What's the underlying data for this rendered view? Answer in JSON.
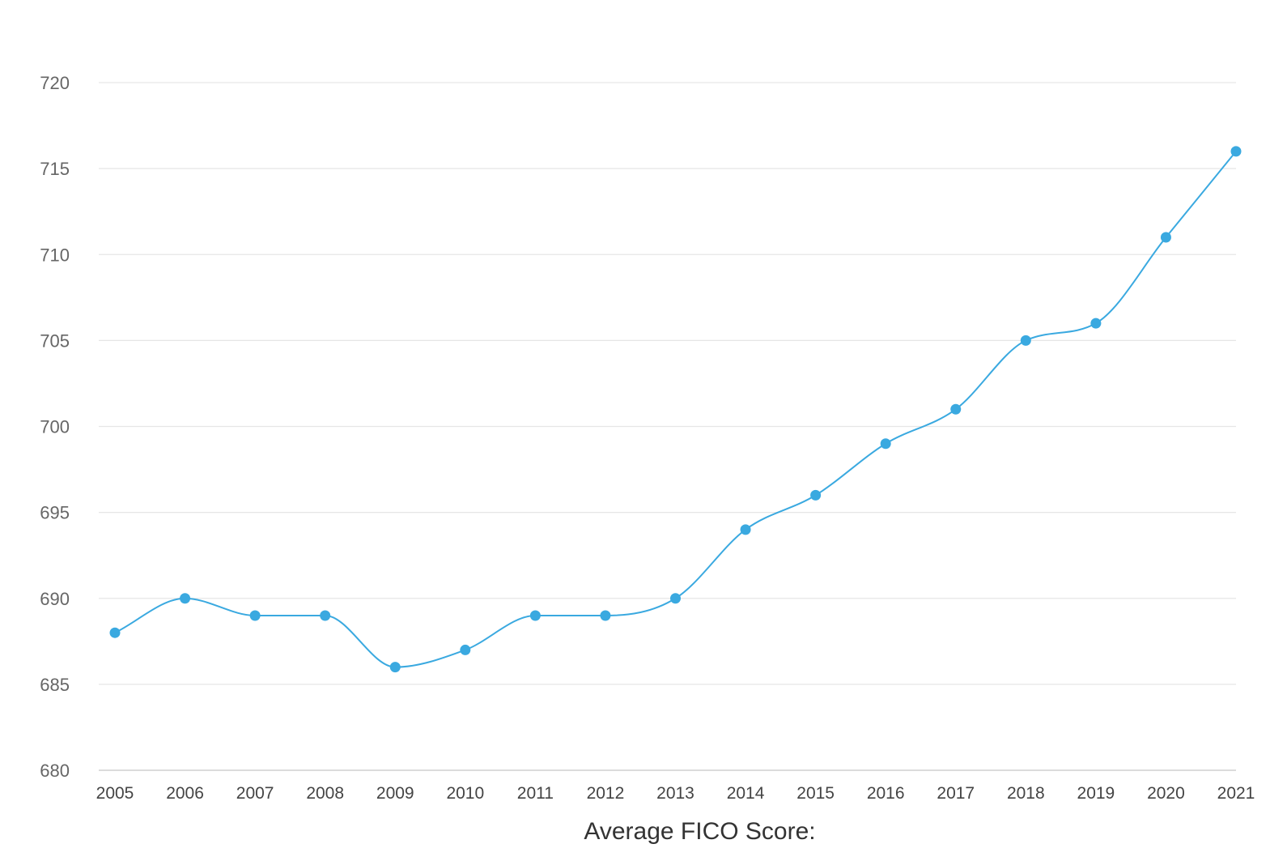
{
  "chart_data": {
    "type": "line",
    "title": "",
    "xlabel": "Average FICO Score:",
    "ylabel": "",
    "x": [
      "2005",
      "2006",
      "2007",
      "2008",
      "2009",
      "2010",
      "2011",
      "2012",
      "2013",
      "2014",
      "2015",
      "2016",
      "2017",
      "2018",
      "2019",
      "2020",
      "2021"
    ],
    "series": [
      {
        "values": [
          688,
          690,
          689,
          689,
          686,
          687,
          689,
          689,
          690,
          694,
          696,
          699,
          701,
          705,
          706,
          711,
          716
        ]
      }
    ],
    "y_ticks": [
      "680",
      "685",
      "690",
      "695",
      "700",
      "705",
      "710",
      "715",
      "720"
    ],
    "ylim": [
      680,
      720
    ],
    "grid": true,
    "legend": "none",
    "line_color": "#3aa9e0",
    "grid_color": "#e6e6e6"
  }
}
